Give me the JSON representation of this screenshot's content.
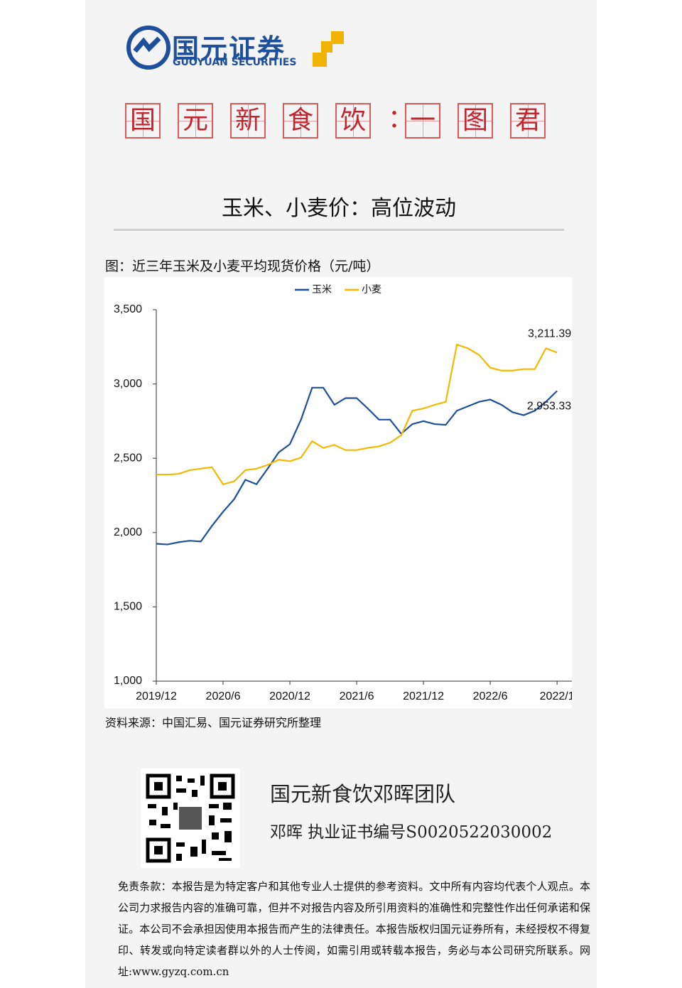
{
  "header": {
    "logo_cn": "国元证券",
    "logo_en": "GUOYUAN SECURITIES"
  },
  "banner": [
    "国",
    "元",
    "新",
    "食",
    "饮",
    "：",
    "一",
    "图",
    "君"
  ],
  "title": "玉米、小麦价：高位波动",
  "figure": {
    "caption": "图：近三年玉米及小麦平均现货价格（元/吨）",
    "source": "资料来源：中国汇易、国元证券研究所整理"
  },
  "chart_data": {
    "type": "line",
    "categories": [
      "2019/12",
      null,
      null,
      null,
      null,
      null,
      "2020/6",
      null,
      null,
      null,
      null,
      null,
      "2020/12",
      null,
      null,
      null,
      null,
      null,
      "2021/6",
      null,
      null,
      null,
      null,
      null,
      "2021/12",
      null,
      null,
      null,
      null,
      null,
      "2022/6",
      null,
      null,
      null,
      null,
      null,
      "2022/1"
    ],
    "series": [
      {
        "name": "玉米",
        "color": "#1f4e9c",
        "values": [
          1925,
          1920,
          1935,
          1945,
          1940,
          2045,
          2140,
          2225,
          2355,
          2325,
          2430,
          2540,
          2595,
          2760,
          2975,
          2975,
          2860,
          2905,
          2905,
          2835,
          2760,
          2760,
          2665,
          2730,
          2750,
          2730,
          2725,
          2820,
          2850,
          2880,
          2895,
          2860,
          2810,
          2790,
          2820,
          2880,
          2953.33
        ],
        "value_labels": [
          null,
          null,
          null,
          null,
          null,
          null,
          null,
          null,
          null,
          null,
          null,
          null,
          null,
          null,
          null,
          null,
          null,
          null,
          null,
          null,
          null,
          null,
          null,
          null,
          null,
          null,
          null,
          null,
          null,
          null,
          null,
          null,
          null,
          null,
          null,
          null,
          "2,953.33"
        ]
      },
      {
        "name": "小麦",
        "color": "#f5b800",
        "values": [
          2390,
          2390,
          2395,
          2420,
          2430,
          2440,
          2325,
          2345,
          2420,
          2430,
          2455,
          2490,
          2480,
          2505,
          2615,
          2570,
          2590,
          2555,
          2555,
          2570,
          2580,
          2605,
          2655,
          2820,
          2835,
          2860,
          2880,
          3265,
          3240,
          3195,
          3110,
          3090,
          3090,
          3100,
          3100,
          3240,
          3211.39
        ],
        "value_labels": [
          null,
          null,
          null,
          null,
          null,
          null,
          null,
          null,
          null,
          null,
          null,
          null,
          null,
          null,
          null,
          null,
          null,
          null,
          null,
          null,
          null,
          null,
          null,
          null,
          null,
          null,
          null,
          null,
          null,
          null,
          null,
          null,
          null,
          null,
          null,
          null,
          "3,211.39"
        ]
      }
    ],
    "ylim": [
      1000,
      3500
    ],
    "yticks": [
      {
        "value": 1000,
        "label": "1,000"
      },
      {
        "value": 1500,
        "label": "1,500"
      },
      {
        "value": 2000,
        "label": "2,000"
      },
      {
        "value": 2500,
        "label": "2,500"
      },
      {
        "value": 3000,
        "label": "3,000"
      },
      {
        "value": 3500,
        "label": "3,500"
      }
    ],
    "grid": false,
    "legend": "top"
  },
  "contact": {
    "team": "国元新食饮邓晖团队",
    "certificate": "邓晖  执业证书编号S0020522030002"
  },
  "disclaimer": "免责条款：本报告是为特定客户和其他专业人士提供的参考资料。文中所有内容均代表个人观点。本公司力求报告内容的准确可靠，但并不对报告内容及所引用资料的准确性和完整性作出任何承诺和保证。本公司不会承担因使用本报告而产生的法律责任。本报告版权归国元证券所有，未经授权不得复印、转发或向特定读者群以外的人士传阅，如需引用或转载本报告，务必与本公司研究所联系。网址:www.gyzq.com.cn"
}
